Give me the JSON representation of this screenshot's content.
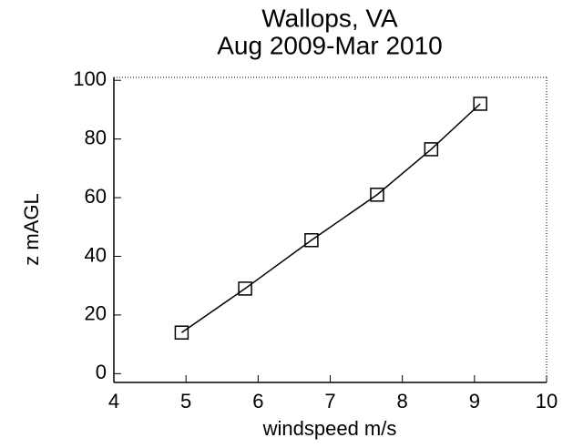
{
  "chart_data": {
    "type": "line",
    "title": [
      "Wallops, VA",
      "Aug 2009-Mar 2010"
    ],
    "x_label": "windspeed m/s",
    "y_label": "z mAGL",
    "x": [
      4.94,
      5.82,
      6.74,
      7.65,
      8.4,
      9.08
    ],
    "series": [
      {
        "color": "#000000",
        "marker": "square",
        "values": [
          14,
          29,
          45.5,
          61,
          76.5,
          92
        ]
      }
    ],
    "xlim": [
      4,
      10
    ],
    "xticks": [
      4,
      5,
      6,
      7,
      8,
      9,
      10
    ],
    "ylim": [
      -3,
      101
    ],
    "yticks": [
      0,
      20,
      40,
      60,
      80,
      100
    ],
    "grid": false
  }
}
